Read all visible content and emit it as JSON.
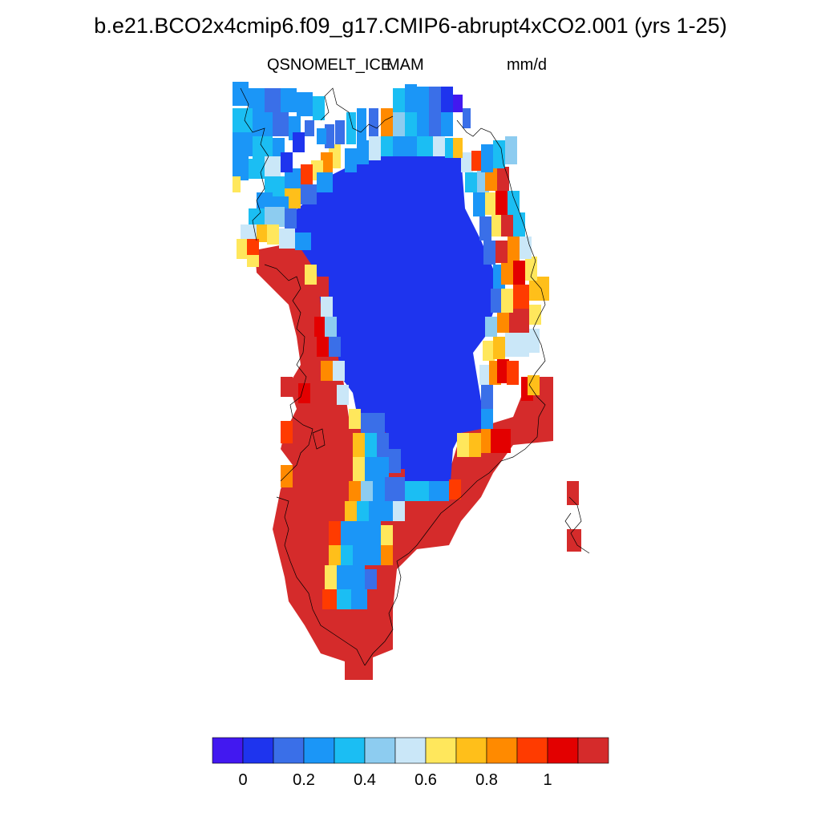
{
  "title": "b.e21.BCO2x4cmip6.f09_g17.CMIP6-abrupt4xCO2.001 (yrs 1-25)",
  "variable": "QSNOMELT_ICE",
  "season": "MAM",
  "units": "mm/d",
  "colorbar": {
    "colors": [
      "#4218F0",
      "#1E34EE",
      "#3A6FE8",
      "#1B96F7",
      "#1BBEF3",
      "#8DCCF0",
      "#CAE7F8",
      "#FFE75C",
      "#FFBF1A",
      "#FF8A00",
      "#FF3B00",
      "#E30000",
      "#D52B2B"
    ],
    "tick_labels": [
      "0",
      "0.2",
      "0.4",
      "0.6",
      "0.8",
      "1"
    ]
  },
  "legend_colors": {
    "deep_blue": "#1E34EE",
    "dark_red": "#D52B2B"
  }
}
